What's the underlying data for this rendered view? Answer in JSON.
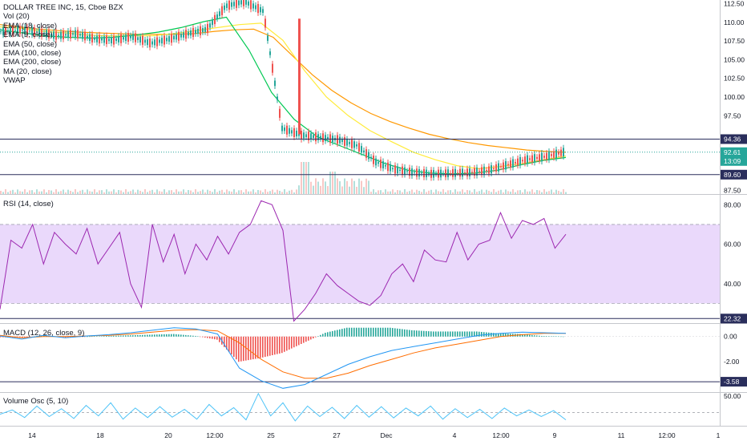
{
  "header": {
    "symbol_title": "DOLLAR TREE INC, 15, Cboe BZX",
    "indicators": [
      "Vol (20)",
      "EMA (18, close)",
      "EMA (9, close)",
      "EMA (50, close)",
      "EMA (100, close)",
      "EMA (200, close)",
      "MA (20, close)",
      "VWAP"
    ]
  },
  "colors": {
    "candle_up": "#26a69a",
    "candle_down": "#ef5350",
    "ema9": "#c46bd1",
    "ema18": "#7e57c2",
    "ema50": "#00c853",
    "ema100": "#ffeb3b",
    "ema200": "#ff9800",
    "ma20": "#2196f3",
    "level_line": "#2a2e5c",
    "rsi": "#9c27b0",
    "rsi_band": "#ead9fb",
    "macd": "#2196f3",
    "signal": "#ff6d00",
    "hist_pos": "#26a69a",
    "hist_neg": "#ef5350",
    "volosc": "#4dc3f7"
  },
  "panes": {
    "price": {
      "ticks": [
        "112.50",
        "110.00",
        "107.50",
        "105.00",
        "102.50",
        "100.00",
        "97.50",
        "94.36",
        "92.61",
        "13:09",
        "89.60",
        "87.50"
      ],
      "level_lines": [
        94.36,
        89.6
      ],
      "last_price": 92.61,
      "countdown": "13:09"
    },
    "rsi": {
      "title": "RSI (14, close)",
      "ticks": [
        "80.00",
        "60.00",
        "40.00",
        "22.32"
      ],
      "band": [
        30,
        70
      ],
      "level_line": 22.32
    },
    "macd": {
      "title": "MACD (12, 26, close, 9)",
      "ticks": [
        "0.00",
        "-2.00",
        "-3.58"
      ],
      "level_line": -3.58
    },
    "volosc": {
      "title": "Volume Osc (5, 10)",
      "ticks": [
        "50.00"
      ]
    }
  },
  "x_axis": {
    "labels": [
      "14",
      "18",
      "20",
      "12:00",
      "25",
      "27",
      "Dec",
      "4",
      "12:00",
      "9",
      "11",
      "12:00",
      "1"
    ]
  },
  "chart_data": [
    {
      "type": "line",
      "title": "DOLLAR TREE INC, 15, Cboe BZX",
      "y_axis_range": [
        87,
        113
      ],
      "x_axis_labels": [
        "14",
        "18",
        "20",
        "12:00",
        "25",
        "27",
        "Dec",
        "4",
        "12:00",
        "9",
        "11",
        "12:00",
        "1"
      ],
      "series": [
        {
          "name": "Price",
          "values": [
            108.8,
            109.0,
            108.7,
            108.2,
            108.5,
            107.8,
            107.6,
            108.1,
            107.2,
            107.8,
            108.5,
            109.1,
            112.2,
            112.8,
            111.5,
            95.8,
            94.9,
            94.6,
            94.3,
            93.5,
            91.3,
            90.3,
            89.9,
            89.7,
            89.8,
            89.9,
            90.2,
            90.9,
            91.6,
            92.0,
            92.6
          ]
        },
        {
          "name": "EMA (200, close)",
          "values": [
            109.7,
            109.4,
            109.1,
            108.9,
            108.7,
            108.6,
            108.5,
            108.4,
            108.4,
            108.4,
            108.5,
            108.8,
            109.0,
            109.1,
            108.0,
            105.5,
            103.0,
            100.9,
            99.2,
            97.8,
            96.7,
            95.8,
            95.0,
            94.4,
            93.9,
            93.5,
            93.2,
            92.9,
            92.7,
            92.6
          ]
        },
        {
          "name": "EMA (100, close)",
          "values": [
            109.4,
            109.2,
            108.8,
            108.6,
            108.3,
            108.2,
            108.2,
            108.2,
            108.5,
            108.9,
            109.3,
            109.7,
            109.9,
            107.6,
            103.5,
            100.0,
            97.5,
            95.5,
            94.0,
            92.6,
            91.6,
            90.8,
            90.4,
            90.7,
            91.1,
            91.6,
            92.1
          ]
        },
        {
          "name": "EMA (50, close)",
          "values": [
            109.0,
            108.6,
            108.2,
            108.0,
            107.9,
            108.0,
            108.3,
            108.7,
            109.3,
            110.1,
            110.7,
            106.3,
            100.6,
            97.0,
            94.7,
            93.5,
            92.3,
            91.1,
            90.2,
            89.8,
            89.7,
            89.8,
            90.2,
            90.9,
            91.5,
            91.9
          ]
        }
      ]
    },
    {
      "type": "line",
      "title": "RSI (14, close)",
      "y_axis_range": [
        20,
        85
      ],
      "band": [
        30,
        70
      ],
      "series": [
        {
          "name": "RSI",
          "values": [
            27,
            62,
            58,
            70,
            50,
            66,
            60,
            55,
            68,
            50,
            58,
            66,
            40,
            28,
            70,
            51,
            65,
            45,
            60,
            52,
            64,
            55,
            66,
            70,
            82,
            80,
            67,
            21,
            27,
            35,
            45,
            39,
            35,
            31,
            29,
            34,
            45,
            50,
            41,
            57,
            52,
            51,
            66,
            52,
            60,
            62,
            76,
            63,
            72,
            70,
            73,
            58,
            65
          ]
        }
      ]
    },
    {
      "type": "line",
      "title": "MACD (12, 26, close, 9)",
      "y_axis_range": [
        -4.4,
        1.0
      ],
      "series": [
        {
          "name": "MACD",
          "values": [
            0.05,
            -0.2,
            0.1,
            -0.1,
            0.05,
            0.15,
            0.3,
            0.5,
            0.7,
            0.6,
            0.2,
            -2.5,
            -3.5,
            -4.1,
            -3.8,
            -3.0,
            -2.2,
            -1.6,
            -1.1,
            -0.8,
            -0.5,
            -0.2,
            0.1,
            0.25,
            0.35,
            0.3,
            0.25
          ]
        },
        {
          "name": "Signal",
          "values": [
            0.1,
            -0.1,
            0.0,
            0.0,
            0.05,
            0.1,
            0.2,
            0.35,
            0.5,
            0.55,
            0.45,
            -0.5,
            -1.8,
            -2.8,
            -3.3,
            -3.3,
            -2.9,
            -2.3,
            -1.8,
            -1.3,
            -0.9,
            -0.6,
            -0.3,
            0.0,
            0.15,
            0.25,
            0.25
          ]
        }
      ]
    },
    {
      "type": "line",
      "title": "Volume Osc (5, 10)",
      "y_axis_range": [
        -40,
        60
      ],
      "series": [
        {
          "name": "Volume Osc",
          "values": [
            -5,
            8,
            -15,
            20,
            -12,
            12,
            -18,
            22,
            -10,
            30,
            -20,
            14,
            -15,
            18,
            -14,
            10,
            -20,
            25,
            -10,
            15,
            -22,
            58,
            -10,
            30,
            -25,
            20,
            -12,
            16,
            -18,
            22,
            -14,
            18,
            -16,
            14,
            -10,
            20,
            -20,
            12,
            -15,
            10,
            -18,
            14,
            -10,
            8,
            -12,
            6,
            -22
          ]
        }
      ]
    }
  ]
}
